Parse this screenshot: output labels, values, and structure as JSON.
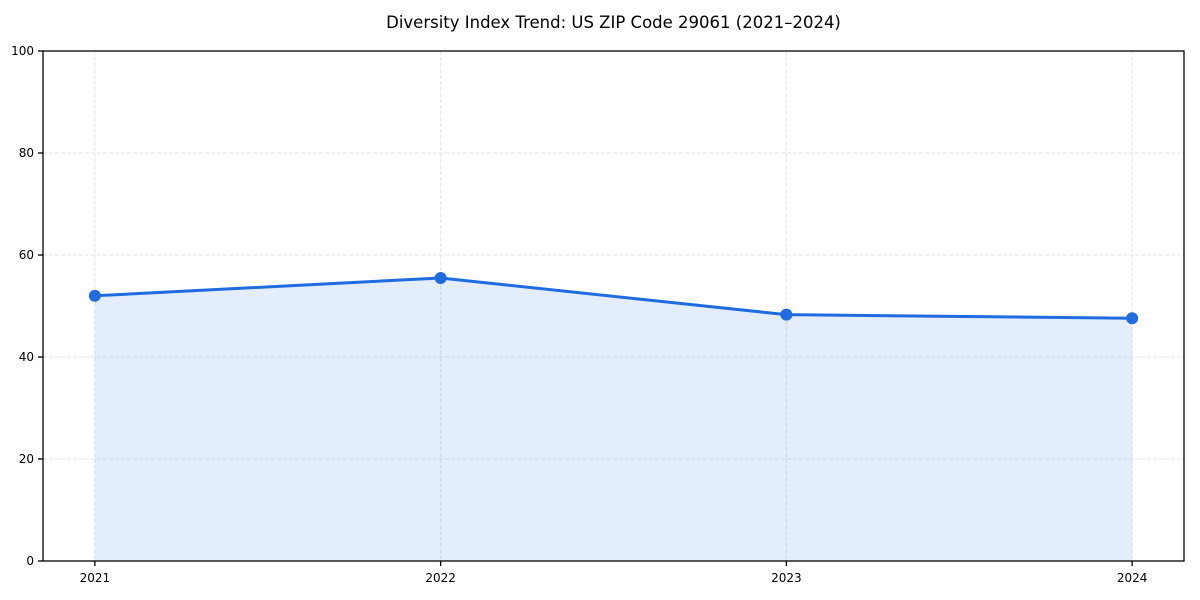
{
  "chart_data": {
    "type": "line",
    "title": "Diversity Index Trend: US ZIP Code 29061 (2021–2024)",
    "xlabel": "",
    "ylabel": "",
    "x": [
      2021,
      2022,
      2023,
      2024
    ],
    "x_tick_labels": [
      "2021",
      "2022",
      "2023",
      "2024"
    ],
    "series": [
      {
        "name": "Diversity Index",
        "values": [
          52.0,
          55.5,
          48.3,
          47.6
        ]
      }
    ],
    "xlim": [
      2020.85,
      2024.15
    ],
    "ylim": [
      0,
      100
    ],
    "yticks": [
      0,
      20,
      40,
      60,
      80,
      100
    ],
    "ytick_labels": [
      "0",
      "20",
      "40",
      "60",
      "80",
      "100"
    ],
    "grid": "dashed-both-axes",
    "legend": "none",
    "area_fill": true,
    "marker": "circle",
    "colors": {
      "line": "#1f6be0",
      "marker": "#1f6be0",
      "area_fill": "rgba(31,107,224,0.12)",
      "grid": "#e3e3e3",
      "axis": "#000000",
      "tick_text": "#000000",
      "background": "#ffffff"
    }
  }
}
